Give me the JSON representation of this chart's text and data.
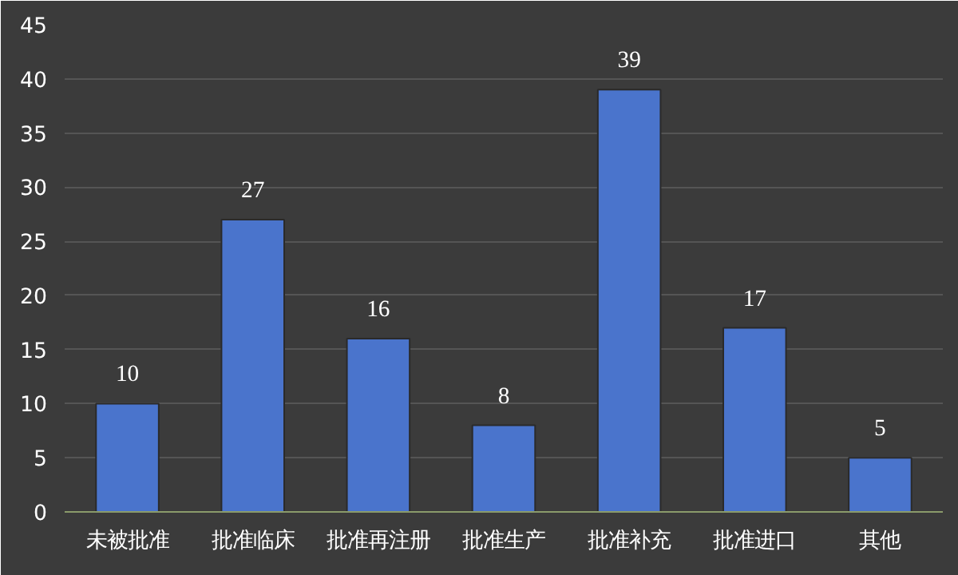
{
  "chart_data": {
    "type": "bar",
    "categories": [
      "未被批准",
      "批准临床",
      "批准再注册",
      "批准生产",
      "批准补充",
      "批准进口",
      "其他"
    ],
    "values": [
      10,
      27,
      16,
      8,
      39,
      17,
      5
    ],
    "color": "#4a74cc",
    "ylim": [
      0,
      45
    ],
    "yticks": [
      0,
      5,
      10,
      15,
      20,
      25,
      30,
      35,
      40,
      45
    ],
    "grid": "y",
    "data_labels": true
  }
}
